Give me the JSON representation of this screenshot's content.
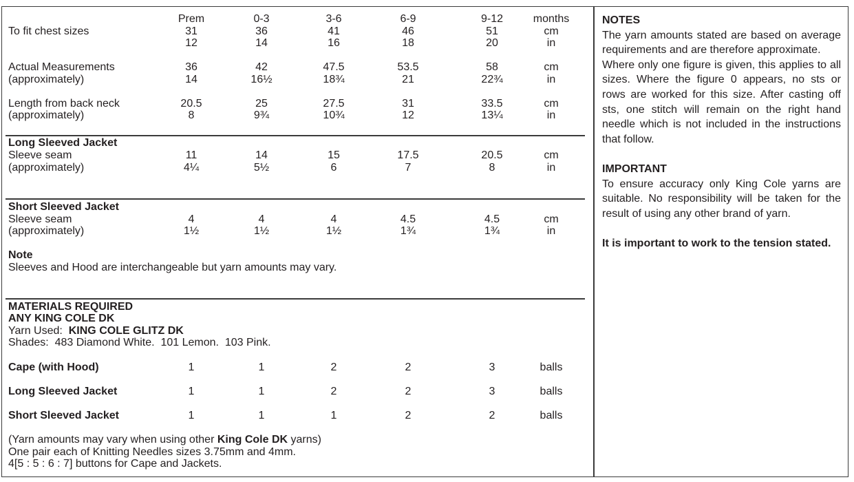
{
  "columns": [
    "Prem",
    "0-3",
    "3-6",
    "6-9",
    "9-12"
  ],
  "header_unit": "months",
  "rows": [
    {
      "label": "",
      "values": [
        "Prem",
        "0-3",
        "3-6",
        "6-9",
        "9-12"
      ],
      "unit": "months",
      "bold": false
    },
    {
      "label": "To fit chest sizes",
      "values": [
        "31",
        "36",
        "41",
        "46",
        "51"
      ],
      "unit": "cm",
      "bold": false
    },
    {
      "label": "",
      "values": [
        "12",
        "14",
        "16",
        "18",
        "20"
      ],
      "unit": "in",
      "bold": false
    },
    {
      "label": "Actual Measurements",
      "values": [
        "36",
        "42",
        "47.5",
        "53.5",
        "58"
      ],
      "unit": "cm",
      "bold": false
    },
    {
      "label": "(approximately)",
      "values": [
        "14",
        "16½",
        "18¾",
        "21",
        "22¾"
      ],
      "unit": "in",
      "bold": false
    },
    {
      "label": "Length from back neck",
      "values": [
        "20.5",
        "25",
        "27.5",
        "31",
        "33.5"
      ],
      "unit": "cm",
      "bold": false
    },
    {
      "label": "(approximately)",
      "values": [
        "8",
        "9¾",
        "10¾",
        "12",
        "13¼"
      ],
      "unit": "in",
      "bold": false
    },
    {
      "label": "Long Sleeved Jacket",
      "values": [],
      "unit": "",
      "bold": true
    },
    {
      "label": "Sleeve seam",
      "values": [
        "11",
        "14",
        "15",
        "17.5",
        "20.5"
      ],
      "unit": "cm",
      "bold": false
    },
    {
      "label": "(approximately)",
      "values": [
        "4¼",
        "5½",
        "6",
        "7",
        "8"
      ],
      "unit": "in",
      "bold": false
    },
    {
      "label": "Short Sleeved Jacket",
      "values": [],
      "unit": "",
      "bold": true
    },
    {
      "label": "Sleeve seam",
      "values": [
        "4",
        "4",
        "4",
        "4.5",
        "4.5"
      ],
      "unit": "cm",
      "bold": false
    },
    {
      "label": "(approximately)",
      "values": [
        "1½",
        "1½",
        "1½",
        "1¾",
        "1¾"
      ],
      "unit": "in",
      "bold": false
    },
    {
      "label": "Note",
      "values": [],
      "unit": "",
      "bold": true
    },
    {
      "label": "Sleeves and Hood are interchangeable but yarn amounts may vary.",
      "values": [],
      "unit": "",
      "bold": false
    },
    {
      "label": "MATERIALS REQUIRED",
      "values": [],
      "unit": "",
      "bold": true
    },
    {
      "label": "ANY KING COLE DK",
      "values": [],
      "unit": "",
      "bold": true
    },
    {
      "label": "Shades:  483 Diamond White.  101 Lemon.  103 Pink.",
      "values": [],
      "unit": "",
      "bold": false
    },
    {
      "label": "Cape (with Hood)",
      "values": [
        "1",
        "1",
        "2",
        "2",
        "3"
      ],
      "unit": "balls",
      "bold": true
    },
    {
      "label": "Long Sleeved Jacket",
      "values": [
        "1",
        "1",
        "2",
        "2",
        "3"
      ],
      "unit": "balls",
      "bold": true
    },
    {
      "label": "Short Sleeved Jacket",
      "values": [
        "1",
        "1",
        "1",
        "2",
        "2"
      ],
      "unit": "balls",
      "bold": true
    },
    {
      "label": "One pair each of Knitting Needles sizes 3.75mm and 4mm.",
      "values": [],
      "unit": "",
      "bold": false
    },
    {
      "label": "4[5 : 5 : 6 : 7] buttons for Cape and Jackets.",
      "values": [],
      "unit": "",
      "bold": false
    }
  ],
  "yarn_used": {
    "prefix": "Yarn Used:  ",
    "value": "KING COLE GLITZ DK"
  },
  "yarn_note": {
    "before": "(Yarn amounts may vary when using other ",
    "bold": "King Cole DK",
    "after": " yarns)"
  },
  "notes": {
    "title": "NOTES",
    "p1": "The yarn amounts stated are based on average requirements and are therefore approximate.",
    "p2": "Where only one figure is given, this applies to all sizes. Where the figure 0 appears, no sts or rows are worked for this size. After casting off sts, one stitch will remain on the right hand needle which is not included in the instructions that follow."
  },
  "important": {
    "title": "IMPORTANT",
    "p1": "To ensure accuracy only King Cole yarns are suitable. No responsibility will be taken for the result of using any other brand of yarn.",
    "p2": "It is important to work to the tension stated."
  }
}
